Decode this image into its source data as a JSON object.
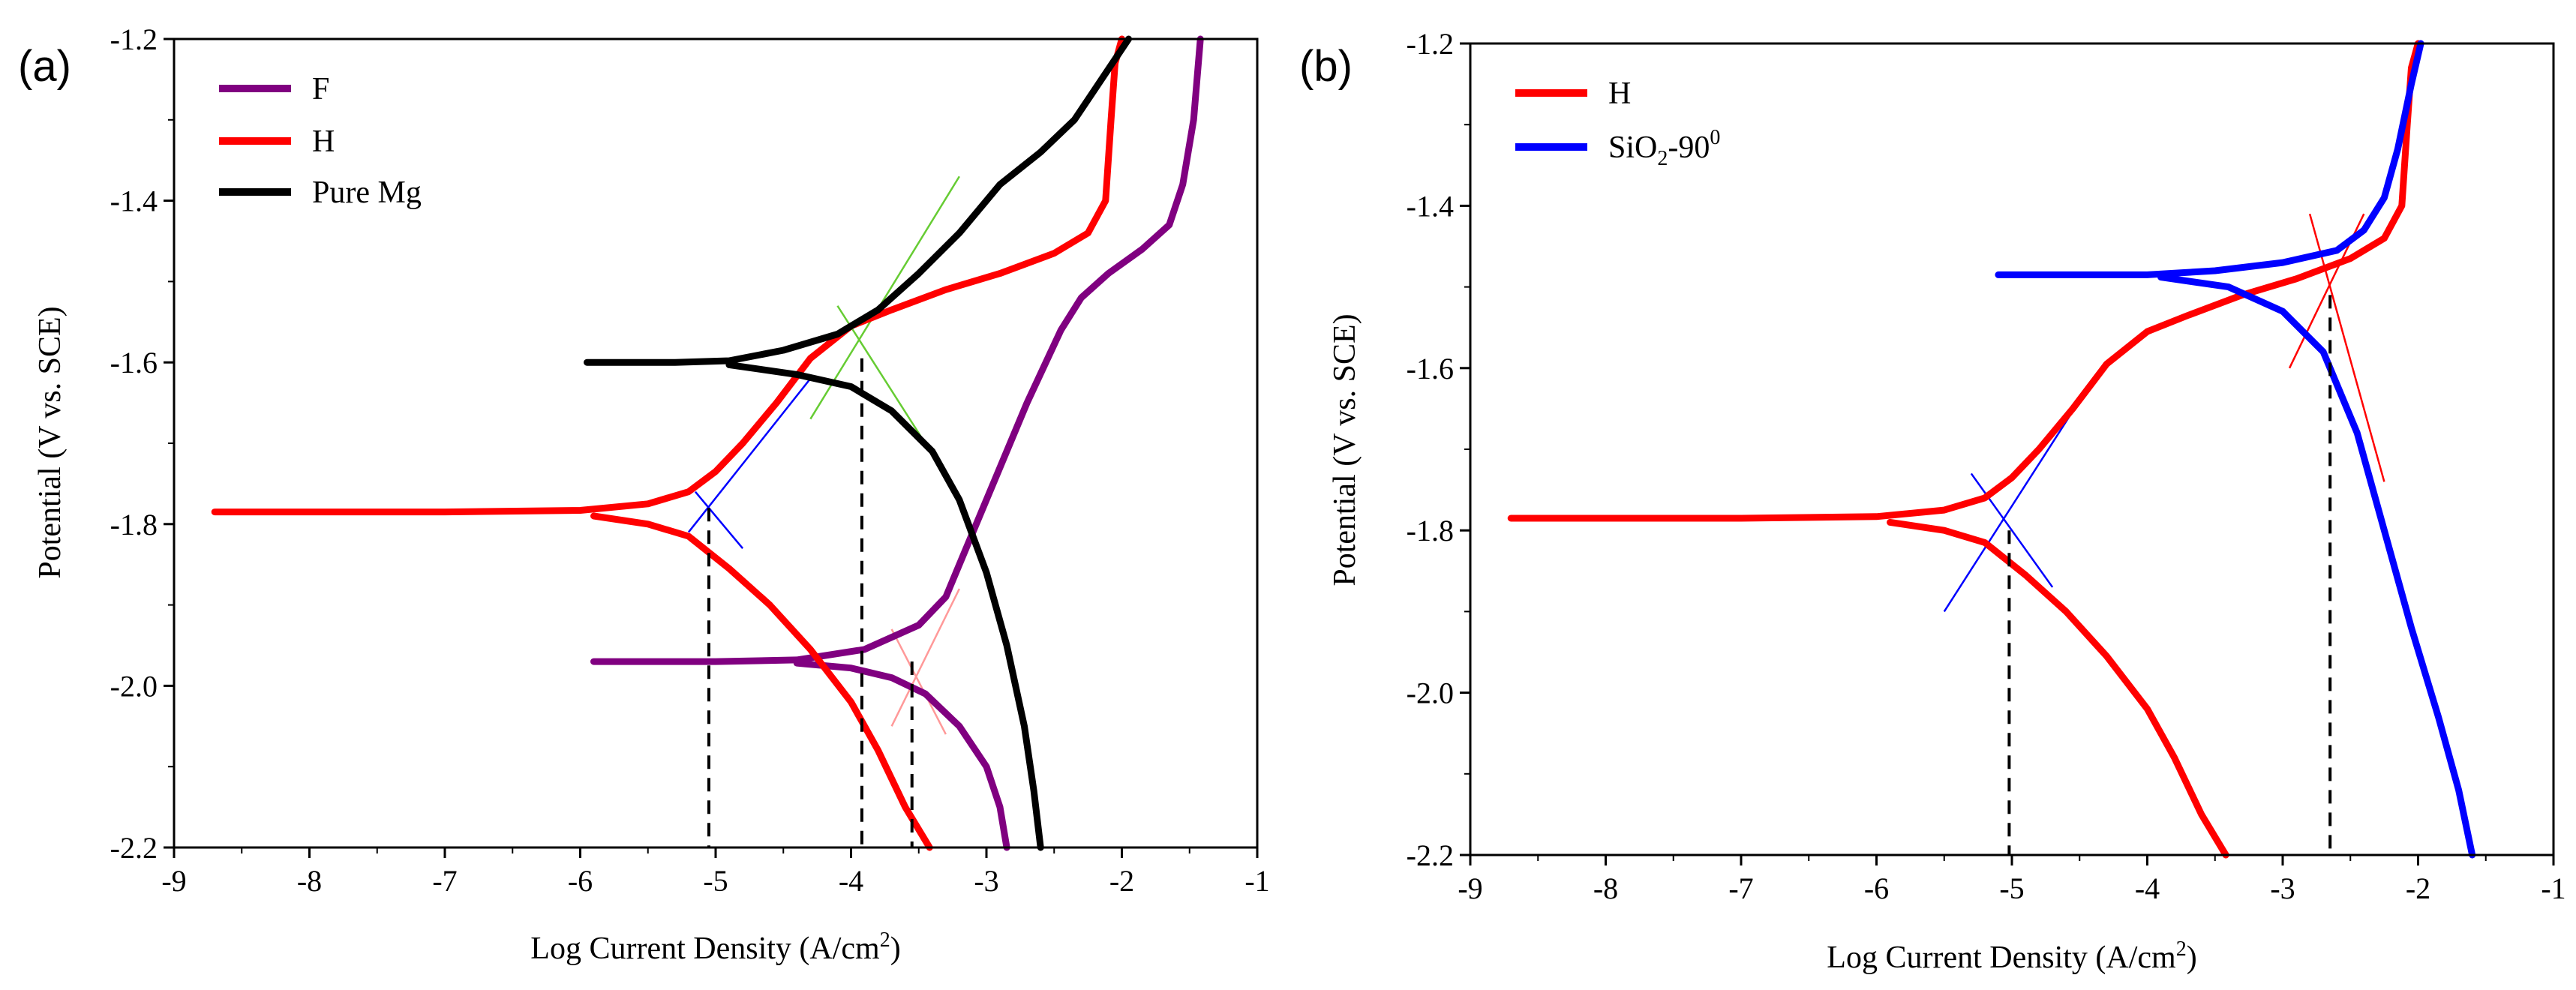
{
  "chart_data": [
    {
      "type": "line",
      "panel_label": "(a)",
      "xlabel": "Log Current Density (A/cm²)",
      "ylabel": "Potential (V vs. SCE)",
      "xlim": [
        -9,
        -1
      ],
      "ylim": [
        -2.2,
        -1.2
      ],
      "xticks": [
        "-9",
        "-8",
        "-7",
        "-6",
        "-5",
        "-4",
        "-3",
        "-2",
        "-1"
      ],
      "yticks": [
        "-2.2",
        "-2.0",
        "-1.8",
        "-1.6",
        "-1.4",
        "-1.2"
      ],
      "series": [
        {
          "name": "F",
          "color": "#800080",
          "anodic": [
            [
              -5.9,
              -1.97
            ],
            [
              -5.0,
              -1.97
            ],
            [
              -4.4,
              -1.968
            ],
            [
              -3.9,
              -1.955
            ],
            [
              -3.5,
              -1.925
            ],
            [
              -3.3,
              -1.89
            ],
            [
              -3.15,
              -1.83
            ],
            [
              -2.95,
              -1.75
            ],
            [
              -2.7,
              -1.65
            ],
            [
              -2.45,
              -1.56
            ],
            [
              -2.3,
              -1.52
            ],
            [
              -2.1,
              -1.49
            ],
            [
              -1.85,
              -1.46
            ],
            [
              -1.65,
              -1.43
            ],
            [
              -1.55,
              -1.38
            ],
            [
              -1.47,
              -1.3
            ],
            [
              -1.42,
              -1.2
            ]
          ],
          "cathodic": [
            [
              -4.4,
              -1.972
            ],
            [
              -4.0,
              -1.978
            ],
            [
              -3.7,
              -1.99
            ],
            [
              -3.45,
              -2.01
            ],
            [
              -3.2,
              -2.05
            ],
            [
              -3.0,
              -2.1
            ],
            [
              -2.9,
              -2.15
            ],
            [
              -2.85,
              -2.2
            ]
          ]
        },
        {
          "name": "H",
          "color": "#ff0000",
          "anodic": [
            [
              -8.7,
              -1.785
            ],
            [
              -7.0,
              -1.785
            ],
            [
              -6.0,
              -1.783
            ],
            [
              -5.5,
              -1.775
            ],
            [
              -5.2,
              -1.76
            ],
            [
              -5.0,
              -1.735
            ],
            [
              -4.8,
              -1.7
            ],
            [
              -4.55,
              -1.65
            ],
            [
              -4.3,
              -1.595
            ],
            [
              -4.0,
              -1.555
            ],
            [
              -3.7,
              -1.535
            ],
            [
              -3.3,
              -1.51
            ],
            [
              -2.9,
              -1.49
            ],
            [
              -2.5,
              -1.465
            ],
            [
              -2.25,
              -1.44
            ],
            [
              -2.12,
              -1.4
            ],
            [
              -2.08,
              -1.3
            ],
            [
              -2.05,
              -1.23
            ],
            [
              -2.0,
              -1.2
            ]
          ],
          "cathodic": [
            [
              -5.9,
              -1.79
            ],
            [
              -5.5,
              -1.8
            ],
            [
              -5.2,
              -1.815
            ],
            [
              -4.9,
              -1.855
            ],
            [
              -4.6,
              -1.9
            ],
            [
              -4.3,
              -1.955
            ],
            [
              -4.0,
              -2.02
            ],
            [
              -3.8,
              -2.08
            ],
            [
              -3.6,
              -2.15
            ],
            [
              -3.42,
              -2.2
            ]
          ]
        },
        {
          "name": "Pure Mg",
          "color": "#000000",
          "anodic": [
            [
              -5.95,
              -1.6
            ],
            [
              -5.3,
              -1.6
            ],
            [
              -4.9,
              -1.598
            ],
            [
              -4.5,
              -1.585
            ],
            [
              -4.1,
              -1.565
            ],
            [
              -3.8,
              -1.535
            ],
            [
              -3.5,
              -1.49
            ],
            [
              -3.2,
              -1.44
            ],
            [
              -2.9,
              -1.38
            ],
            [
              -2.6,
              -1.34
            ],
            [
              -2.35,
              -1.3
            ],
            [
              -2.15,
              -1.25
            ],
            [
              -1.95,
              -1.2
            ]
          ],
          "cathodic": [
            [
              -4.9,
              -1.603
            ],
            [
              -4.4,
              -1.615
            ],
            [
              -4.0,
              -1.63
            ],
            [
              -3.7,
              -1.66
            ],
            [
              -3.4,
              -1.71
            ],
            [
              -3.2,
              -1.77
            ],
            [
              -3.0,
              -1.86
            ],
            [
              -2.85,
              -1.95
            ],
            [
              -2.72,
              -2.05
            ],
            [
              -2.65,
              -2.13
            ],
            [
              -2.6,
              -2.2
            ]
          ]
        }
      ],
      "tafel_lines": [
        {
          "color": "#0000ff",
          "points": [
            [
              -5.2,
              -1.81
            ],
            [
              -4.3,
              -1.62
            ]
          ]
        },
        {
          "color": "#0000ff",
          "points": [
            [
              -5.15,
              -1.76
            ],
            [
              -4.8,
              -1.83
            ]
          ]
        },
        {
          "color": "#66cc33",
          "points": [
            [
              -4.3,
              -1.67
            ],
            [
              -3.2,
              -1.37
            ]
          ]
        },
        {
          "color": "#66cc33",
          "points": [
            [
              -4.1,
              -1.53
            ],
            [
              -3.3,
              -1.74
            ]
          ]
        },
        {
          "color": "#ff9999",
          "points": [
            [
              -3.7,
              -2.05
            ],
            [
              -3.2,
              -1.88
            ]
          ]
        },
        {
          "color": "#ff9999",
          "points": [
            [
              -3.7,
              -1.93
            ],
            [
              -3.3,
              -2.06
            ]
          ]
        }
      ],
      "icorr_lines": [
        {
          "x": -5.05,
          "y": -1.78
        },
        {
          "x": -3.92,
          "y": -1.595
        },
        {
          "x": -3.55,
          "y": -1.97
        }
      ]
    },
    {
      "type": "line",
      "panel_label": "(b)",
      "xlabel": "Log Current Density (A/cm²)",
      "ylabel": "Potential (V vs. SCE)",
      "xlim": [
        -9,
        -1
      ],
      "ylim": [
        -2.2,
        -1.2
      ],
      "xticks": [
        "-9",
        "-8",
        "-7",
        "-6",
        "-5",
        "-4",
        "-3",
        "-2",
        "-1"
      ],
      "yticks": [
        "-2.2",
        "-2.0",
        "-1.8",
        "-1.6",
        "-1.4",
        "-1.2"
      ],
      "series": [
        {
          "name": "H",
          "color": "#ff0000",
          "anodic": [
            [
              -8.7,
              -1.785
            ],
            [
              -7.0,
              -1.785
            ],
            [
              -6.0,
              -1.783
            ],
            [
              -5.5,
              -1.775
            ],
            [
              -5.2,
              -1.76
            ],
            [
              -5.0,
              -1.735
            ],
            [
              -4.8,
              -1.7
            ],
            [
              -4.55,
              -1.65
            ],
            [
              -4.3,
              -1.595
            ],
            [
              -4.0,
              -1.555
            ],
            [
              -3.7,
              -1.535
            ],
            [
              -3.3,
              -1.51
            ],
            [
              -2.9,
              -1.49
            ],
            [
              -2.5,
              -1.465
            ],
            [
              -2.25,
              -1.44
            ],
            [
              -2.12,
              -1.4
            ],
            [
              -2.08,
              -1.3
            ],
            [
              -2.05,
              -1.23
            ],
            [
              -2.0,
              -1.2
            ]
          ],
          "cathodic": [
            [
              -5.9,
              -1.79
            ],
            [
              -5.5,
              -1.8
            ],
            [
              -5.2,
              -1.815
            ],
            [
              -4.9,
              -1.855
            ],
            [
              -4.6,
              -1.9
            ],
            [
              -4.3,
              -1.955
            ],
            [
              -4.0,
              -2.02
            ],
            [
              -3.8,
              -2.08
            ],
            [
              -3.6,
              -2.15
            ],
            [
              -3.42,
              -2.2
            ]
          ]
        },
        {
          "name": "SiO2-90°",
          "color": "#0000ff",
          "anodic": [
            [
              -5.1,
              -1.485
            ],
            [
              -4.0,
              -1.485
            ],
            [
              -3.5,
              -1.48
            ],
            [
              -3.0,
              -1.47
            ],
            [
              -2.6,
              -1.455
            ],
            [
              -2.4,
              -1.43
            ],
            [
              -2.25,
              -1.39
            ],
            [
              -2.15,
              -1.33
            ],
            [
              -2.05,
              -1.25
            ],
            [
              -1.98,
              -1.2
            ]
          ],
          "cathodic": [
            [
              -3.9,
              -1.488
            ],
            [
              -3.4,
              -1.5
            ],
            [
              -3.0,
              -1.53
            ],
            [
              -2.7,
              -1.58
            ],
            [
              -2.45,
              -1.68
            ],
            [
              -2.25,
              -1.8
            ],
            [
              -2.05,
              -1.92
            ],
            [
              -1.85,
              -2.03
            ],
            [
              -1.7,
              -2.12
            ],
            [
              -1.6,
              -2.2
            ]
          ]
        }
      ],
      "tafel_lines": [
        {
          "color": "#0000ff",
          "points": [
            [
              -5.5,
              -1.9
            ],
            [
              -4.5,
              -1.64
            ]
          ]
        },
        {
          "color": "#0000ff",
          "points": [
            [
              -5.3,
              -1.73
            ],
            [
              -4.7,
              -1.87
            ]
          ]
        },
        {
          "color": "#ff0000",
          "points": [
            [
              -2.95,
              -1.6
            ],
            [
              -2.4,
              -1.41
            ]
          ]
        },
        {
          "color": "#ff0000",
          "points": [
            [
              -2.8,
              -1.41
            ],
            [
              -2.25,
              -1.74
            ]
          ]
        }
      ],
      "icorr_lines": [
        {
          "x": -5.02,
          "y": -1.8
        },
        {
          "x": -2.65,
          "y": -1.51
        }
      ]
    }
  ],
  "legends": [
    {
      "items": [
        "F",
        "H",
        "Pure Mg"
      ]
    },
    {
      "items": [
        "H",
        "SiO",
        "2",
        "-90",
        "0"
      ]
    }
  ],
  "xlabel_main": "Log Current Density (A/cm",
  "xlabel_sup": "2",
  "xlabel_end": ")"
}
